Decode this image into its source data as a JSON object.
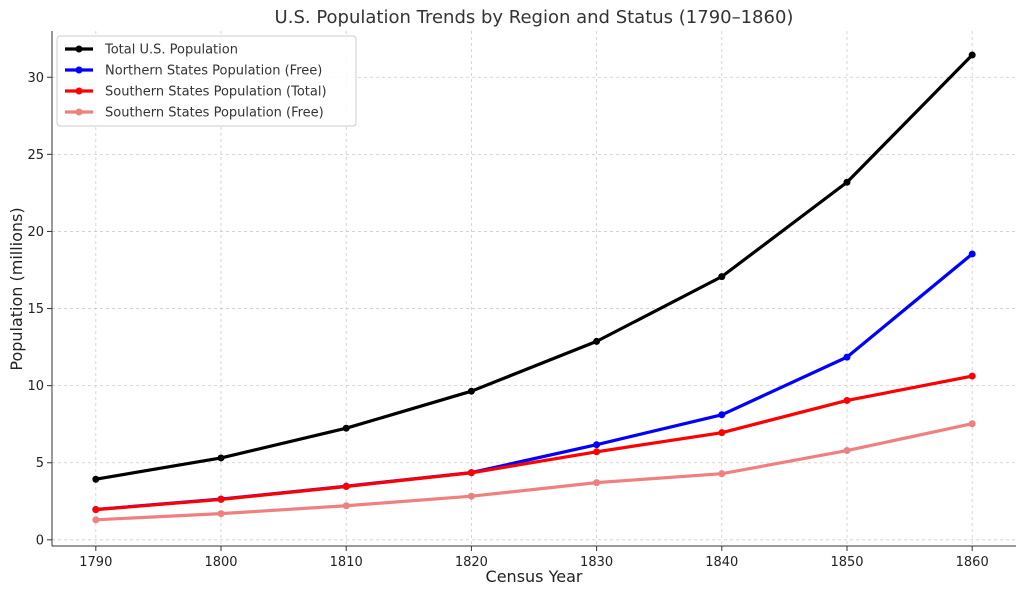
{
  "chart_data": {
    "type": "line",
    "title": "U.S. Population Trends by Region and Status (1790–1860)",
    "xlabel": "Census Year",
    "ylabel": "Population (millions)",
    "x": [
      1790,
      1800,
      1810,
      1820,
      1830,
      1840,
      1850,
      1860
    ],
    "xlim": [
      1786.5,
      1863.5
    ],
    "ylim": [
      -0.4,
      33.0
    ],
    "yticks": [
      0,
      5,
      10,
      15,
      20,
      25,
      30
    ],
    "grid": true,
    "legend_position": "top-left",
    "series": [
      {
        "name": "Total U.S. Population",
        "color": "#000000",
        "values": [
          3.93,
          5.31,
          7.24,
          9.64,
          12.87,
          17.07,
          23.19,
          31.44
        ]
      },
      {
        "name": "Northern States Population (Free)",
        "color": "#0000ff",
        "values": [
          1.97,
          2.64,
          3.48,
          4.36,
          6.17,
          8.11,
          11.85,
          18.54
        ]
      },
      {
        "name": "Southern States Population (Total)",
        "color": "#ff0000",
        "values": [
          1.96,
          2.62,
          3.46,
          4.35,
          5.71,
          6.95,
          9.04,
          10.62
        ]
      },
      {
        "name": "Southern States Population (Free)",
        "color": "#f08080",
        "values": [
          1.3,
          1.7,
          2.21,
          2.83,
          3.71,
          4.29,
          5.79,
          7.53
        ]
      }
    ]
  }
}
